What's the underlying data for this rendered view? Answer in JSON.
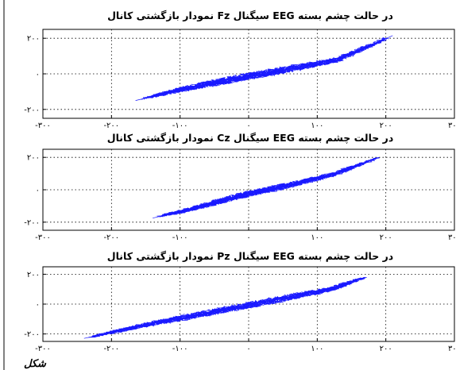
{
  "chart_data": [
    {
      "type": "line",
      "title": "نمودار بازگشتی کانال Fz سیگنال EEG در حالت چشم بسته",
      "xlabel": "",
      "ylabel": "",
      "xlim": [
        -300,
        300
      ],
      "ylim": [
        -250,
        250
      ],
      "xticks": [
        -300,
        -200,
        -100,
        0,
        100,
        200,
        300
      ],
      "xtick_labels": [
        "-۳۰۰",
        "-۲۰۰",
        "-۱۰۰",
        "۰",
        "۱۰۰",
        "۲۰۰",
        "۳۰۰"
      ],
      "yticks": [
        200,
        0,
        -200
      ],
      "ytick_labels": [
        "۲۰۰",
        "۰",
        "-۲۰۰"
      ],
      "grid": true,
      "color": "#1a1aff",
      "series": [
        {
          "x": [
            -165,
            -100,
            -30,
            50,
            130,
            210
          ],
          "y": [
            -150,
            -90,
            -35,
            20,
            80,
            215
          ]
        }
      ],
      "spread": 20
    },
    {
      "type": "line",
      "title": "نمودار بازگشتی کانال Cz سیگنال EEG در حالت چشم بسته",
      "xlabel": "",
      "ylabel": "",
      "xlim": [
        -300,
        300
      ],
      "ylim": [
        -250,
        250
      ],
      "xticks": [
        -300,
        -200,
        -100,
        0,
        100,
        200,
        300
      ],
      "xtick_labels": [
        "-۳۰۰",
        "-۲۰۰",
        "-۱۰۰",
        "۰",
        "۱۰۰",
        "۲۰۰",
        "۳۰۰"
      ],
      "yticks": [
        200,
        0,
        -200
      ],
      "ytick_labels": [
        "۲۰۰",
        "۰",
        "-۲۰۰"
      ],
      "grid": true,
      "color": "#1a1aff",
      "series": [
        {
          "x": [
            -140,
            -80,
            -20,
            50,
            120,
            190
          ],
          "y": [
            -175,
            -115,
            -45,
            20,
            90,
            200
          ]
        }
      ],
      "spread": 18
    },
    {
      "type": "line",
      "title": "نمودار بازگشتی کانال Pz سیگنال EEG در حالت چشم بسته",
      "xlabel": "",
      "ylabel": "",
      "xlim": [
        -300,
        300
      ],
      "ylim": [
        -250,
        250
      ],
      "xticks": [
        -300,
        -200,
        -100,
        0,
        100,
        200,
        300
      ],
      "xtick_labels": [
        "-۳۰۰",
        "-۲۰۰",
        "-۱۰۰",
        "۰",
        "۱۰۰",
        "۲۰۰",
        "۳۰۰"
      ],
      "yticks": [
        200,
        0,
        -200
      ],
      "ytick_labels": [
        "۲۰۰",
        "۰",
        "-۲۰۰"
      ],
      "grid": true,
      "color": "#1a1aff",
      "series": [
        {
          "x": [
            -240,
            -150,
            -60,
            30,
            120,
            170
          ],
          "y": [
            -230,
            -140,
            -60,
            20,
            100,
            180
          ]
        }
      ],
      "spread": 22
    }
  ],
  "footer": {
    "text": "شکل"
  }
}
